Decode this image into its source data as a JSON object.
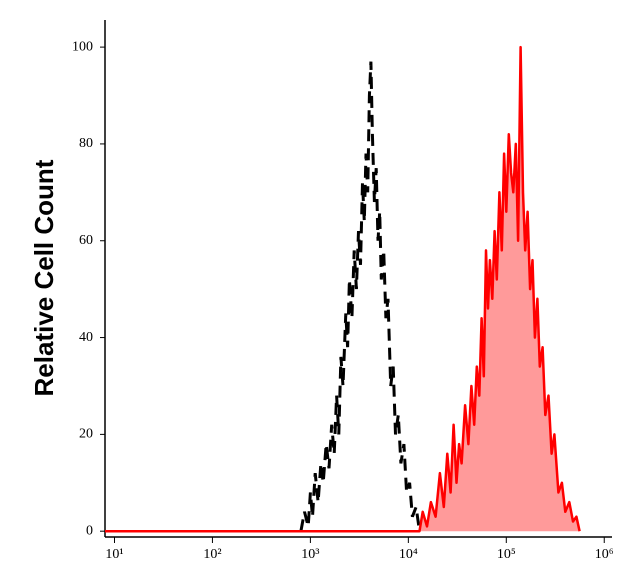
{
  "chart_data": {
    "type": "histogram-overlay",
    "ylabel": "Relative Cell Count",
    "xscale": "log",
    "xlim": [
      8,
      1200000
    ],
    "ylim": [
      -1.2,
      105.6
    ],
    "xticks": [
      {
        "value": 10,
        "label": "10¹"
      },
      {
        "value": 100,
        "label": "10²"
      },
      {
        "value": 1000,
        "label": "10³"
      },
      {
        "value": 10000,
        "label": "10⁴"
      },
      {
        "value": 100000,
        "label": "10⁵"
      },
      {
        "value": 1000000,
        "label": "10⁶"
      }
    ],
    "yticks": [
      0,
      20,
      40,
      60,
      80,
      100
    ],
    "series": [
      {
        "color": "#000000",
        "style": "dashed",
        "x": [
          800,
          870,
          950,
          1000,
          1050,
          1120,
          1200,
          1280,
          1350,
          1450,
          1550,
          1650,
          1750,
          1850,
          1950,
          2050,
          2150,
          2300,
          2400,
          2500,
          2650,
          2800,
          2950,
          3100,
          3250,
          3400,
          3550,
          3700,
          3850,
          4000,
          4150,
          4300,
          4500,
          4700,
          4900,
          5100,
          5300,
          5600,
          5900,
          6200,
          6600,
          7000,
          7400,
          7900,
          8400,
          9000,
          9600,
          10300,
          11000,
          12000,
          13000
        ],
        "values": [
          0,
          4,
          1,
          8,
          3,
          12,
          6,
          14,
          10,
          18,
          13,
          22,
          16,
          28,
          20,
          36,
          30,
          45,
          38,
          52,
          44,
          58,
          50,
          62,
          55,
          72,
          64,
          78,
          70,
          90,
          97,
          82,
          68,
          75,
          60,
          66,
          52,
          58,
          44,
          48,
          30,
          34,
          20,
          24,
          14,
          18,
          8,
          10,
          3,
          5,
          0
        ]
      },
      {
        "color": "#ff0000",
        "fill": "#ff9a9a",
        "style": "filled",
        "x": [
          8,
          13000,
          14000,
          15500,
          17000,
          19000,
          21000,
          23000,
          25000,
          27000,
          29000,
          31000,
          33000,
          35000,
          38000,
          41000,
          44000,
          47000,
          50000,
          53000,
          56000,
          59000,
          62000,
          65000,
          68000,
          72000,
          76000,
          80000,
          85000,
          90000,
          95000,
          100000,
          106000,
          112000,
          118000,
          125000,
          132000,
          140000,
          148000,
          156000,
          165000,
          175000,
          185000,
          196000,
          208000,
          220000,
          235000,
          250000,
          270000,
          290000,
          310000,
          340000,
          370000,
          400000,
          440000,
          480000,
          520000,
          560000
        ],
        "values": [
          0,
          0,
          4,
          1,
          6,
          3,
          12,
          5,
          16,
          8,
          22,
          10,
          18,
          14,
          26,
          18,
          30,
          22,
          34,
          28,
          44,
          32,
          58,
          46,
          56,
          48,
          62,
          52,
          70,
          58,
          78,
          66,
          82,
          74,
          70,
          80,
          60,
          100,
          70,
          58,
          66,
          50,
          56,
          40,
          48,
          34,
          38,
          24,
          28,
          16,
          20,
          8,
          10,
          4,
          6,
          2,
          3,
          0
        ]
      }
    ]
  }
}
